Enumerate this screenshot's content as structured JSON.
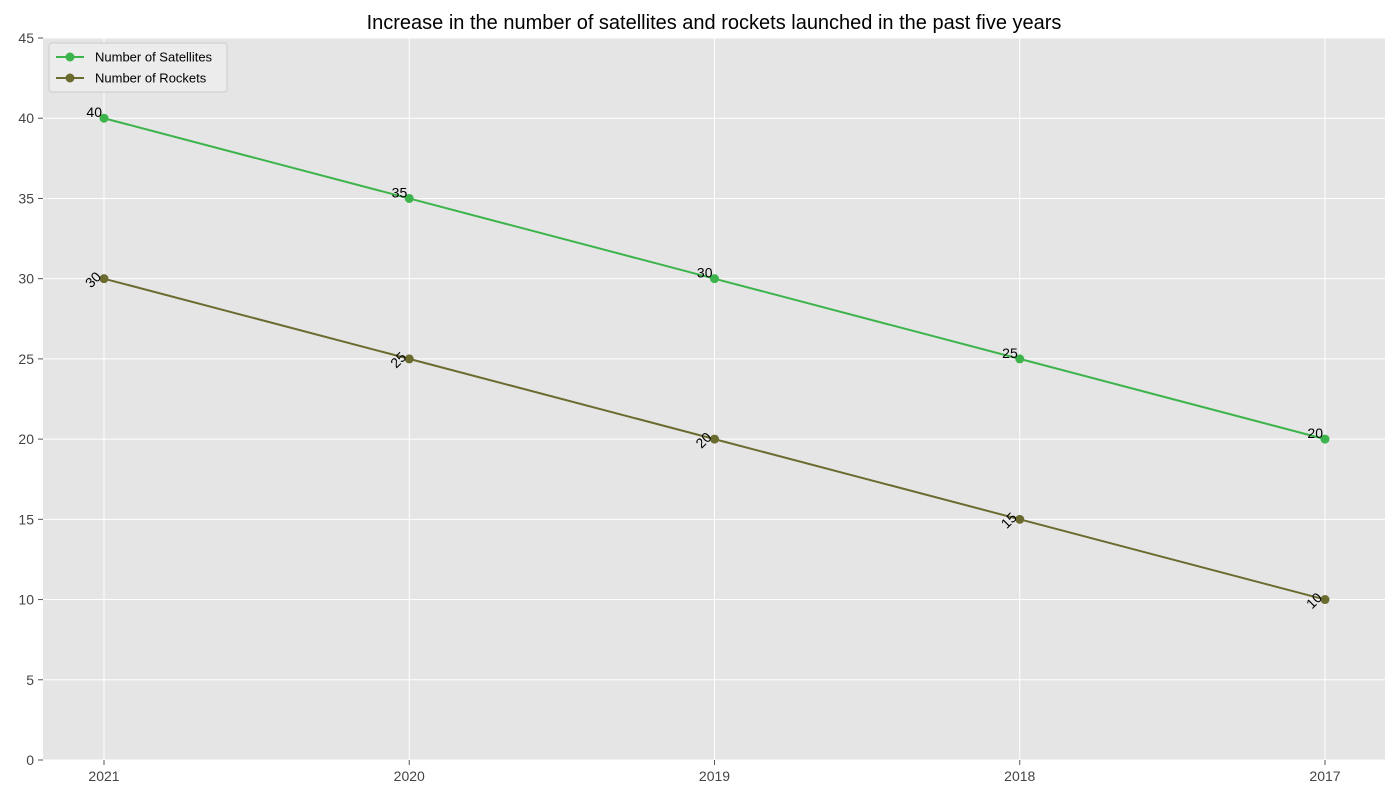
{
  "chart_data": {
    "type": "line",
    "title": "Increase in the number of satellites and rockets launched in the past five years",
    "xlabel": "",
    "ylabel": "",
    "categories": [
      "2021",
      "2020",
      "2019",
      "2018",
      "2017"
    ],
    "ylim": [
      0,
      45
    ],
    "yticks": [
      0,
      5,
      10,
      15,
      20,
      25,
      30,
      35,
      40,
      45
    ],
    "grid": true,
    "legend_position": "top-left",
    "series": [
      {
        "name": "Number of Satellites",
        "values": [
          40,
          35,
          30,
          25,
          20
        ],
        "color": "#3cb44b",
        "label_rotation": 0
      },
      {
        "name": "Number of Rockets",
        "values": [
          30,
          25,
          20,
          15,
          10
        ],
        "color": "#6b6b30",
        "label_rotation": 45
      }
    ],
    "background_color": "#e5e5e5"
  }
}
